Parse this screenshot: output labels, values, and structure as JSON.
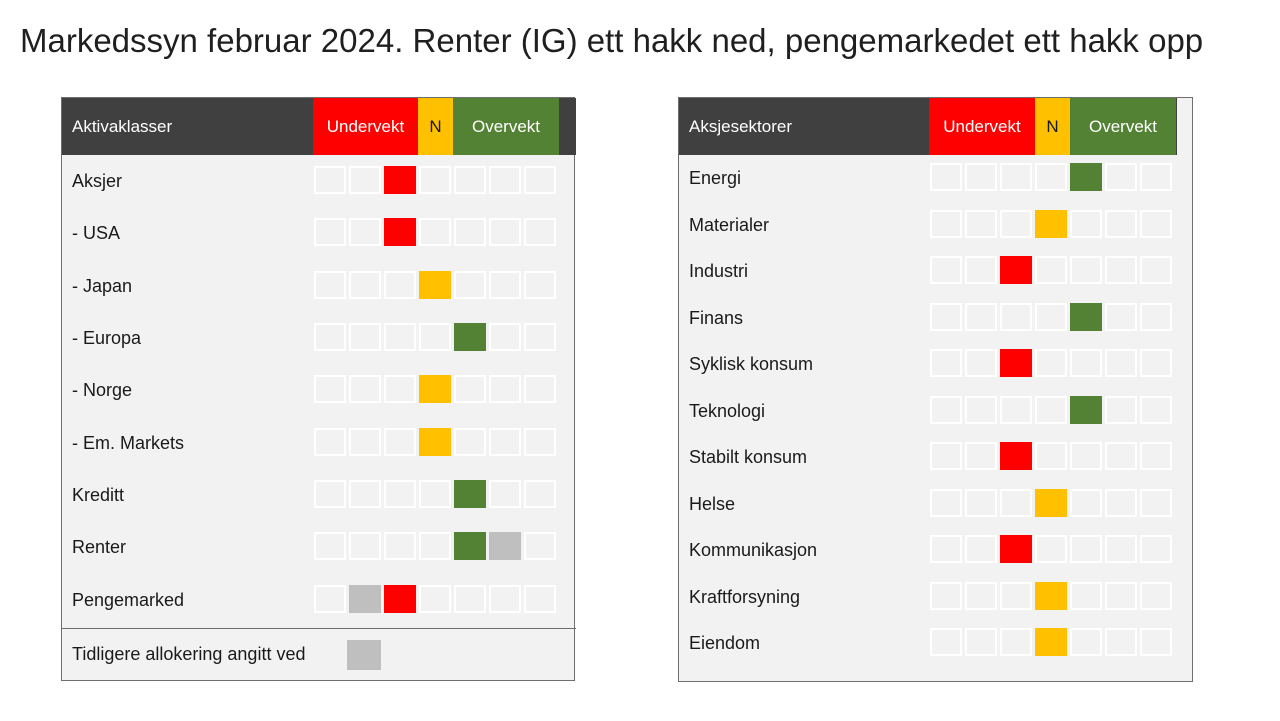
{
  "title": "Markedssyn februar 2024. Renter (IG) ett hakk ned, pengemarkedet ett hakk opp",
  "colors": {
    "red": "#ff0000",
    "yellow": "#ffc000",
    "green": "#548235",
    "grey": "#bfbfbf",
    "header": "#404040"
  },
  "chart_data": [
    {
      "type": "table",
      "title": "Aktivaklasser",
      "scale": {
        "under": "Undervekt",
        "neutral": "N",
        "over": "Overvekt"
      },
      "positions": 7,
      "rows": [
        {
          "label": "Aksjer",
          "current": 3,
          "current_color": "red",
          "previous": null
        },
        {
          "label": "- USA",
          "current": 3,
          "current_color": "red",
          "previous": null
        },
        {
          "label": "- Japan",
          "current": 4,
          "current_color": "yellow",
          "previous": null
        },
        {
          "label": "- Europa",
          "current": 5,
          "current_color": "green",
          "previous": null
        },
        {
          "label": "- Norge",
          "current": 4,
          "current_color": "yellow",
          "previous": null
        },
        {
          "label": "- Em. Markets",
          "current": 4,
          "current_color": "yellow",
          "previous": null
        },
        {
          "label": "Kreditt",
          "current": 5,
          "current_color": "green",
          "previous": null
        },
        {
          "label": "Renter",
          "current": 5,
          "current_color": "green",
          "previous": 6
        },
        {
          "label": "Pengemarked",
          "current": 3,
          "current_color": "red",
          "previous": 2
        }
      ],
      "legend": "Tidligere allokering angitt ved"
    },
    {
      "type": "table",
      "title": "Aksjesektorer",
      "scale": {
        "under": "Undervekt",
        "neutral": "N",
        "over": "Overvekt"
      },
      "positions": 7,
      "rows": [
        {
          "label": "Energi",
          "current": 5,
          "current_color": "green",
          "previous": null
        },
        {
          "label": "Materialer",
          "current": 4,
          "current_color": "yellow",
          "previous": null
        },
        {
          "label": "Industri",
          "current": 3,
          "current_color": "red",
          "previous": null
        },
        {
          "label": "Finans",
          "current": 5,
          "current_color": "green",
          "previous": null
        },
        {
          "label": "Syklisk konsum",
          "current": 3,
          "current_color": "red",
          "previous": null
        },
        {
          "label": "Teknologi",
          "current": 5,
          "current_color": "green",
          "previous": null
        },
        {
          "label": "Stabilt konsum",
          "current": 3,
          "current_color": "red",
          "previous": null
        },
        {
          "label": "Helse",
          "current": 4,
          "current_color": "yellow",
          "previous": null
        },
        {
          "label": "Kommunikasjon",
          "current": 3,
          "current_color": "red",
          "previous": null
        },
        {
          "label": "Kraftforsyning",
          "current": 4,
          "current_color": "yellow",
          "previous": null
        },
        {
          "label": "Eiendom",
          "current": 4,
          "current_color": "yellow",
          "previous": null
        }
      ]
    }
  ]
}
